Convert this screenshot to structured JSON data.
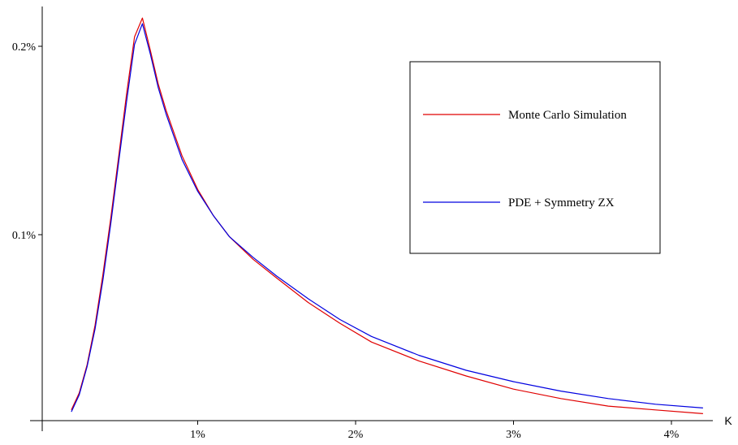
{
  "chart_data": {
    "type": "line",
    "title": "",
    "xlabel": "K",
    "ylabel": "",
    "xlim": [
      0.0,
      4.2
    ],
    "ylim": [
      0.0,
      0.22
    ],
    "grid": false,
    "legend_position": "top-right",
    "x_ticks": [
      {
        "value": 1,
        "label": "1%"
      },
      {
        "value": 2,
        "label": "2%"
      },
      {
        "value": 3,
        "label": "3%"
      },
      {
        "value": 4,
        "label": "4%"
      }
    ],
    "y_ticks": [
      {
        "value": 0.1,
        "label": "0.1%"
      },
      {
        "value": 0.2,
        "label": "0.2%"
      }
    ],
    "series": [
      {
        "name": "Monte Carlo Simulation",
        "color": "#e00000",
        "x": [
          0.2,
          0.25,
          0.3,
          0.35,
          0.4,
          0.45,
          0.5,
          0.55,
          0.6,
          0.65,
          0.7,
          0.75,
          0.8,
          0.9,
          1.0,
          1.1,
          1.2,
          1.35,
          1.5,
          1.7,
          1.9,
          2.1,
          2.4,
          2.7,
          3.0,
          3.3,
          3.6,
          3.9,
          4.2
        ],
        "values": [
          0.007,
          0.016,
          0.031,
          0.052,
          0.079,
          0.109,
          0.142,
          0.175,
          0.205,
          0.215,
          0.198,
          0.18,
          0.166,
          0.142,
          0.124,
          0.11,
          0.099,
          0.087,
          0.077,
          0.064,
          0.053,
          0.043,
          0.033,
          0.025,
          0.018,
          0.013,
          0.009,
          0.007,
          0.005
        ]
      },
      {
        "name": "PDE + Symmetry ZX",
        "color": "#0000e0",
        "x": [
          0.2,
          0.25,
          0.3,
          0.35,
          0.4,
          0.45,
          0.5,
          0.55,
          0.6,
          0.65,
          0.7,
          0.75,
          0.8,
          0.9,
          1.0,
          1.1,
          1.2,
          1.35,
          1.5,
          1.7,
          1.9,
          2.1,
          2.4,
          2.7,
          3.0,
          3.3,
          3.6,
          3.9,
          4.2
        ],
        "values": [
          0.006,
          0.015,
          0.03,
          0.05,
          0.076,
          0.106,
          0.139,
          0.171,
          0.201,
          0.212,
          0.196,
          0.178,
          0.164,
          0.14,
          0.123,
          0.11,
          0.099,
          0.088,
          0.078,
          0.066,
          0.055,
          0.046,
          0.036,
          0.028,
          0.022,
          0.017,
          0.013,
          0.01,
          0.008
        ]
      }
    ]
  }
}
